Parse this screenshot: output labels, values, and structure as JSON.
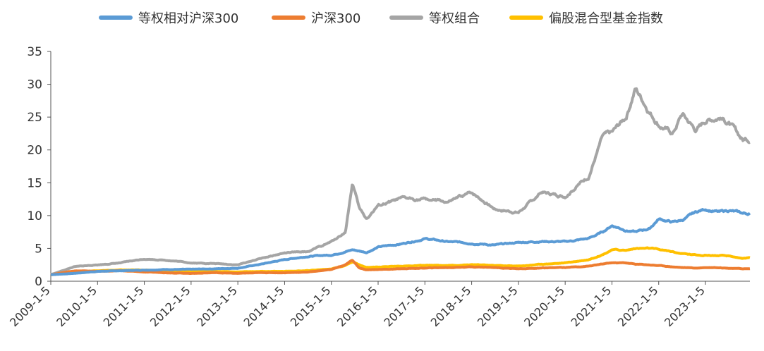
{
  "chart_data": {
    "type": "line",
    "title": "",
    "xlabel": "",
    "ylabel": "",
    "ylim": [
      0,
      35
    ],
    "yticks": [
      "0",
      "5",
      "10",
      "15",
      "20",
      "25",
      "30",
      "35"
    ],
    "x_tick_labels": [
      "2009-1-5",
      "2010-1-5",
      "2011-1-5",
      "2012-1-5",
      "2013-1-5",
      "2014-1-5",
      "2015-1-5",
      "2016-1-5",
      "2017-1-5",
      "2018-1-5",
      "2019-1-5",
      "2020-1-5",
      "2021-1-5",
      "2022-1-5",
      "2023-1-5"
    ],
    "x": [
      2009.0,
      2009.5,
      2010.0,
      2010.5,
      2011.0,
      2011.5,
      2012.0,
      2012.5,
      2013.0,
      2013.5,
      2014.0,
      2014.5,
      2015.0,
      2015.3,
      2015.45,
      2015.6,
      2015.75,
      2016.0,
      2016.5,
      2017.0,
      2017.5,
      2018.0,
      2018.5,
      2019.0,
      2019.5,
      2020.0,
      2020.5,
      2020.8,
      2021.0,
      2021.3,
      2021.5,
      2021.8,
      2022.0,
      2022.3,
      2022.5,
      2022.8,
      2023.0,
      2023.3,
      2023.5,
      2023.8
    ],
    "series": [
      {
        "name": "等权相对沪深300",
        "color": "#5b9bd5",
        "values": [
          1.0,
          1.2,
          1.5,
          1.6,
          1.7,
          1.8,
          1.8,
          1.9,
          2.0,
          2.6,
          3.3,
          3.8,
          4.0,
          4.5,
          4.8,
          4.6,
          4.4,
          5.2,
          5.7,
          6.5,
          6.0,
          5.8,
          5.5,
          5.9,
          6.1,
          6.0,
          6.5,
          7.5,
          8.5,
          7.8,
          7.5,
          8.0,
          9.5,
          9.0,
          9.3,
          10.5,
          11.0,
          10.5,
          10.8,
          10.3
        ]
      },
      {
        "name": "沪深300",
        "color": "#ed7d31",
        "values": [
          1.0,
          1.6,
          1.5,
          1.6,
          1.4,
          1.3,
          1.2,
          1.3,
          1.2,
          1.3,
          1.3,
          1.4,
          1.8,
          2.5,
          3.2,
          2.0,
          1.7,
          1.8,
          1.9,
          2.0,
          2.1,
          2.2,
          2.1,
          1.9,
          2.0,
          2.1,
          2.3,
          2.6,
          2.8,
          2.8,
          2.6,
          2.5,
          2.4,
          2.2,
          2.1,
          2.0,
          2.1,
          2.1,
          2.0,
          1.9
        ]
      },
      {
        "name": "等权组合",
        "color": "#a5a5a5",
        "values": [
          1.0,
          2.2,
          2.5,
          2.8,
          3.4,
          3.2,
          2.8,
          2.7,
          2.5,
          3.5,
          4.3,
          4.5,
          6.0,
          7.5,
          15.0,
          11.0,
          9.5,
          11.5,
          12.5,
          12.5,
          12.0,
          13.5,
          11.0,
          10.5,
          13.5,
          13.0,
          16.0,
          22.0,
          22.5,
          25.0,
          29.5,
          26.0,
          24.0,
          22.5,
          25.5,
          23.0,
          24.5,
          25.0,
          24.0,
          21.5
        ]
      },
      {
        "name": "偏股混合型基金指数",
        "color": "#ffc000",
        "values": [
          1.0,
          1.4,
          1.6,
          1.7,
          1.7,
          1.6,
          1.5,
          1.5,
          1.4,
          1.5,
          1.5,
          1.6,
          1.9,
          2.4,
          3.0,
          2.5,
          2.1,
          2.2,
          2.3,
          2.4,
          2.4,
          2.5,
          2.4,
          2.3,
          2.6,
          2.8,
          3.3,
          4.1,
          4.8,
          4.7,
          5.0,
          5.0,
          4.8,
          4.5,
          4.2,
          4.0,
          4.0,
          3.9,
          3.8,
          3.5
        ]
      }
    ]
  }
}
